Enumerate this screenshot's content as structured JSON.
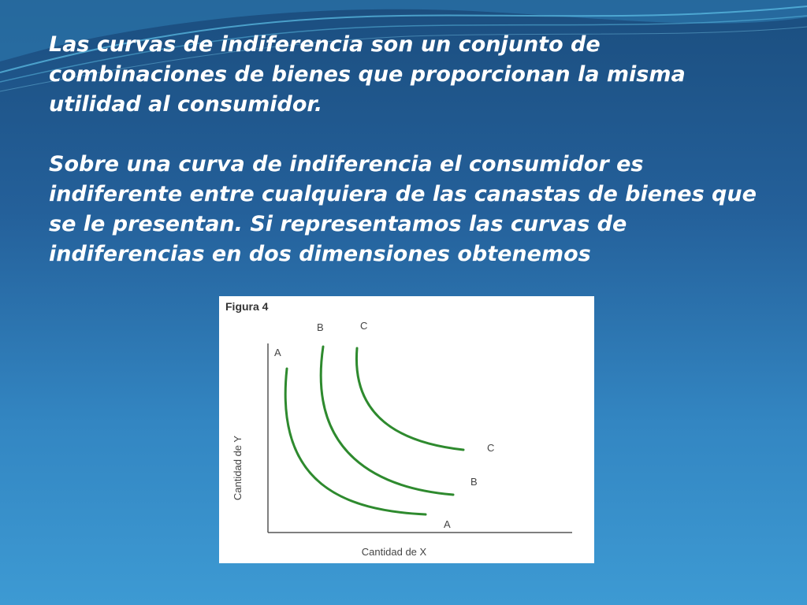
{
  "slide": {
    "paragraph_1": "Las curvas de indiferencia son un conjunto de combinaciones de bienes que proporcionan la misma utilidad al consumidor.",
    "paragraph_2": "Sobre una curva de indiferencia el consumidor es indiferente entre cualquiera de las canastas de bienes que se le presentan. Si representamos las curvas de indiferencias en dos dimensiones obtenemos"
  },
  "figure": {
    "title": "Figura 4",
    "xlabel": "Cantidad de X",
    "ylabel": "Cantidad de Y",
    "curve_color": "#2e8a2e",
    "curves": [
      {
        "top_label": "A",
        "end_label": "A"
      },
      {
        "top_label": "B",
        "end_label": "B"
      },
      {
        "top_label": "C",
        "end_label": "C"
      }
    ]
  }
}
